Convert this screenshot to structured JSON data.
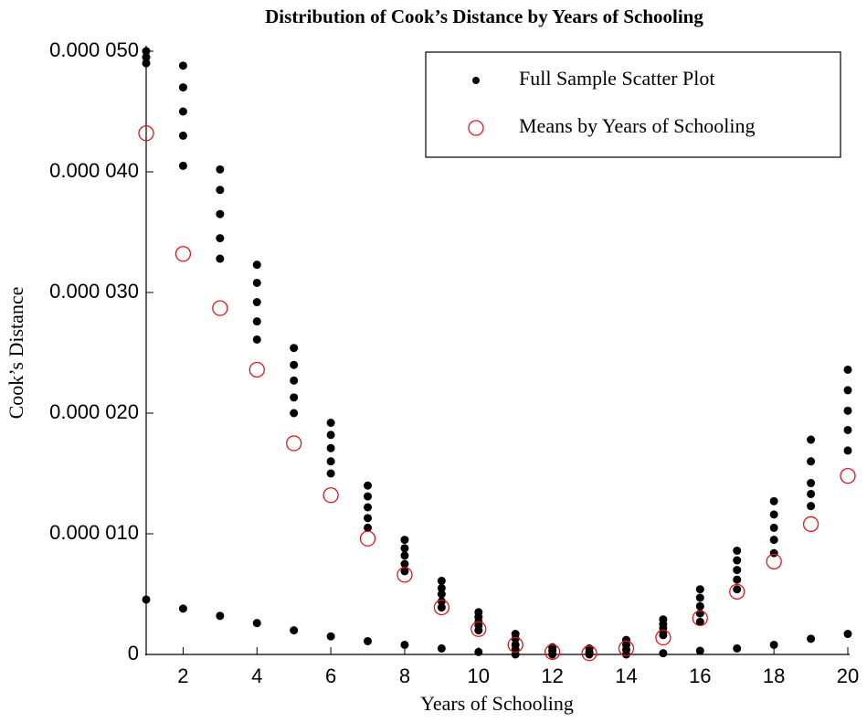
{
  "chart_data": {
    "type": "scatter",
    "title": "Distribution of Cook’s Distance by Years of Schooling",
    "x_label": "Years of Schooling",
    "y_label": "Cook’s Distance",
    "xlim": [
      1,
      20
    ],
    "xticks": [
      2,
      4,
      6,
      8,
      10,
      12,
      14,
      16,
      18,
      20
    ],
    "ylim": [
      0,
      5e-05
    ],
    "yticks": [
      0,
      {
        "value": 1e-05,
        "label": "0.000 010"
      },
      {
        "value": 2e-05,
        "label": "0.000 020"
      },
      {
        "value": 3e-05,
        "label": "0.000 030"
      },
      {
        "value": 4e-05,
        "label": "0.000 040"
      },
      {
        "value": 5e-05,
        "label": "0.000 050"
      }
    ],
    "legend": "upper right",
    "series": [
      {
        "name": "Full Sample Scatter Plot",
        "color": "#000000",
        "marker": "dot",
        "x": [
          1,
          1,
          1,
          1,
          2,
          2,
          2,
          2,
          2,
          2,
          3,
          3,
          3,
          3,
          3,
          3,
          4,
          4,
          4,
          4,
          4,
          4,
          5,
          5,
          5,
          5,
          5,
          5,
          6,
          6,
          6,
          6,
          6,
          6,
          7,
          7,
          7,
          7,
          7,
          7,
          8,
          8,
          8,
          8,
          8,
          8,
          9,
          9,
          9,
          9,
          9,
          9,
          10,
          10,
          10,
          10,
          10,
          10,
          11,
          11,
          11,
          11,
          11,
          12,
          12,
          12,
          13,
          13,
          13,
          14,
          14,
          14,
          14,
          15,
          15,
          15,
          15,
          15,
          15,
          16,
          16,
          16,
          16,
          16,
          16,
          17,
          17,
          17,
          17,
          17,
          17,
          18,
          18,
          18,
          18,
          18,
          18,
          19,
          19,
          19,
          19,
          19,
          19,
          20,
          20,
          20,
          20,
          20,
          20
        ],
        "values": [
          5e-05,
          4.95e-05,
          4.9e-05,
          4.55e-06,
          4.88e-05,
          4.7e-05,
          4.5e-05,
          4.3e-05,
          4.05e-05,
          3.8e-06,
          4.02e-05,
          3.85e-05,
          3.65e-05,
          3.45e-05,
          3.28e-05,
          3.2e-06,
          3.23e-05,
          3.08e-05,
          2.92e-05,
          2.76e-05,
          2.61e-05,
          2.6e-06,
          2.54e-05,
          2.4e-05,
          2.27e-05,
          2.13e-05,
          2e-05,
          2e-06,
          1.92e-05,
          1.82e-05,
          1.71e-05,
          1.6e-05,
          1.5e-05,
          1.5e-06,
          1.4e-05,
          1.31e-05,
          1.22e-05,
          1.13e-05,
          1.05e-05,
          1.1e-06,
          9.5e-06,
          8.8e-06,
          8.2e-06,
          7.5e-06,
          6.9e-06,
          8e-07,
          6.1e-06,
          5.5e-06,
          5e-06,
          4.4e-06,
          3.9e-06,
          5e-07,
          3.5e-06,
          3.1e-06,
          2.7e-06,
          2.4e-06,
          2e-06,
          2e-07,
          1.7e-06,
          1.3e-06,
          8e-07,
          4e-07,
          0,
          6e-07,
          3e-07,
          0,
          5e-07,
          2e-07,
          0,
          1.2e-06,
          8e-07,
          4e-07,
          0,
          2.9e-06,
          2.5e-06,
          2.2e-06,
          1.9e-06,
          1.6e-06,
          1e-07,
          5.4e-06,
          4.7e-06,
          4e-06,
          3.4e-06,
          2.7e-06,
          3e-07,
          8.6e-06,
          7.8e-06,
          7e-06,
          6.2e-06,
          5.4e-06,
          5e-07,
          1.27e-05,
          1.16e-05,
          1.05e-05,
          9.5e-06,
          8.4e-06,
          8e-07,
          1.78e-05,
          1.6e-05,
          1.42e-05,
          1.33e-05,
          1.23e-05,
          1.3e-06,
          2.36e-05,
          2.19e-05,
          2.02e-05,
          1.86e-05,
          1.69e-05,
          1.7e-06
        ]
      },
      {
        "name": "Means by Years of Schooling",
        "color": "#e8111b",
        "marker": "circle",
        "x": [
          1,
          2,
          3,
          4,
          5,
          6,
          7,
          8,
          9,
          10,
          11,
          12,
          13,
          14,
          15,
          16,
          17,
          18,
          19,
          20
        ],
        "values": [
          4.32e-05,
          3.32e-05,
          2.87e-05,
          2.36e-05,
          1.75e-05,
          1.32e-05,
          9.6e-06,
          6.6e-06,
          3.9e-06,
          2.1e-06,
          8e-07,
          2e-07,
          1e-07,
          5e-07,
          1.4e-06,
          3e-06,
          5.2e-06,
          7.7e-06,
          1.08e-05,
          1.48e-05
        ]
      }
    ]
  }
}
